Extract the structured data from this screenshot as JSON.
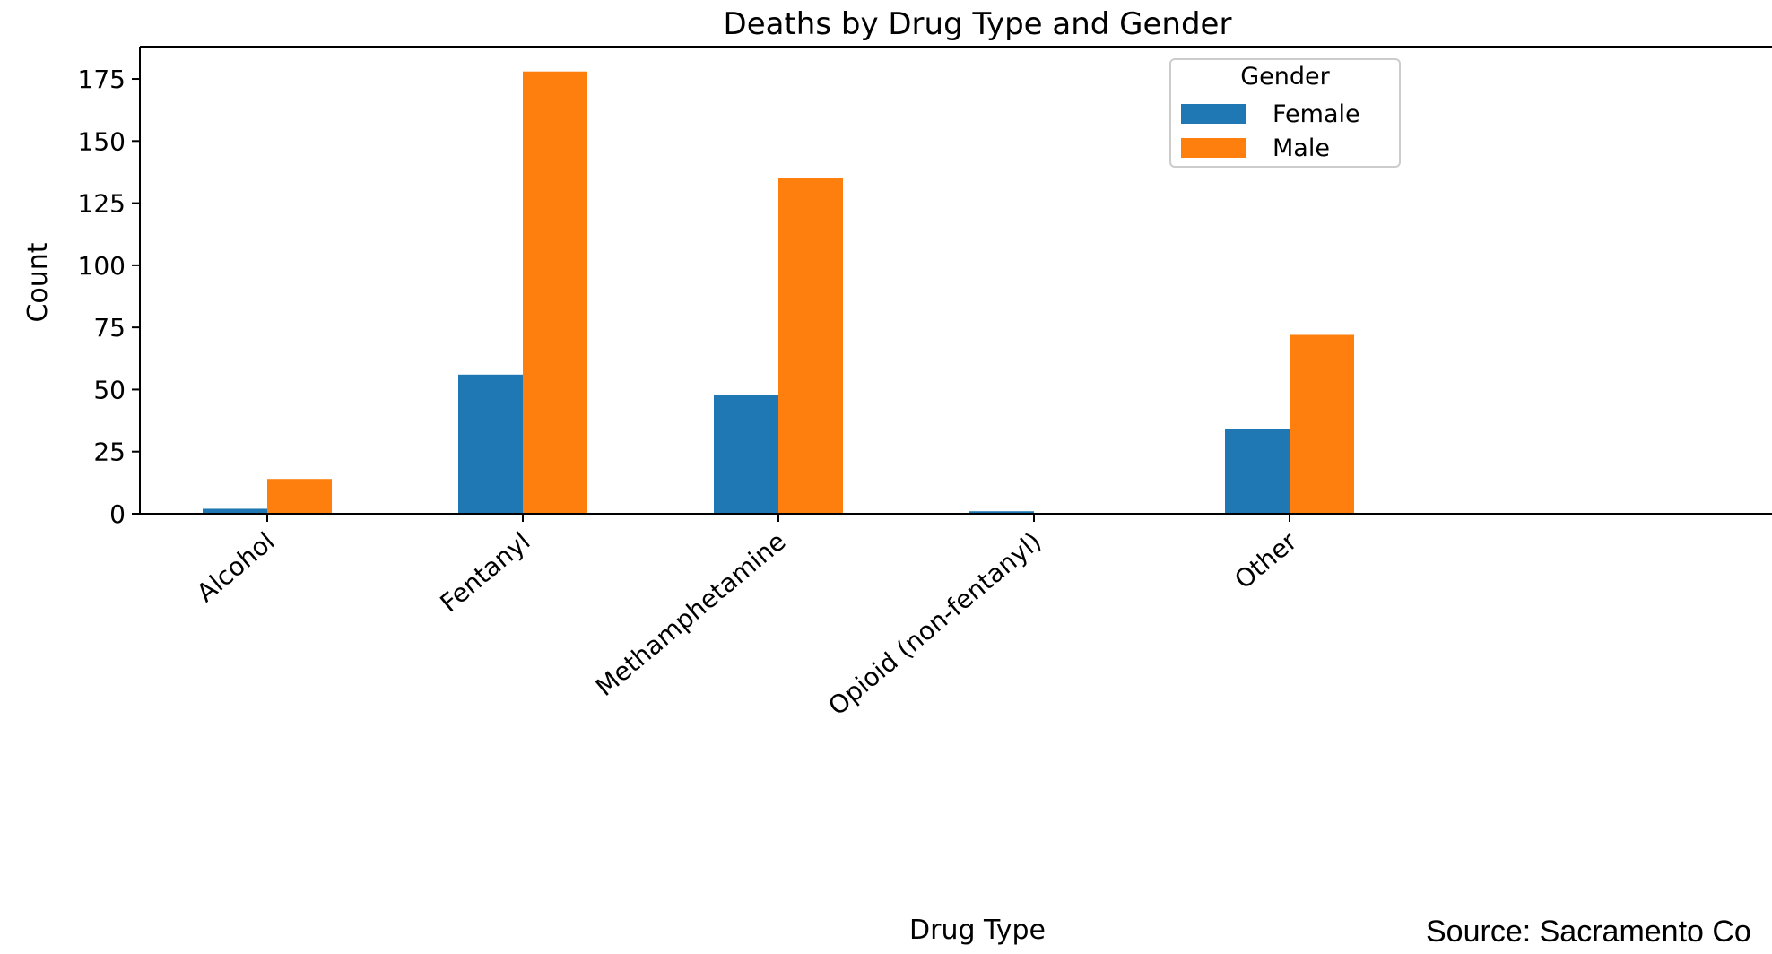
{
  "chart_data": {
    "type": "bar",
    "title": "Deaths by Drug Type and Gender",
    "xlabel": "Drug Type",
    "ylabel": "Count",
    "categories": [
      "Alcohol",
      "Fentanyl",
      "Methamphetamine",
      "Opioid (non-fentanyl)",
      "Other"
    ],
    "series": [
      {
        "name": "Female",
        "values": [
          2,
          56,
          48,
          1,
          34
        ],
        "color": "#1f77b4"
      },
      {
        "name": "Male",
        "values": [
          14,
          178,
          135,
          0,
          72
        ],
        "color": "#ff7f0e"
      }
    ],
    "ylim": [
      0,
      188
    ],
    "yticks": [
      0,
      25,
      50,
      75,
      100,
      125,
      150,
      175
    ],
    "legend": {
      "title": "Gender",
      "position": "top-right"
    },
    "grid": false
  },
  "source_note": "Source: Sacramento Co"
}
